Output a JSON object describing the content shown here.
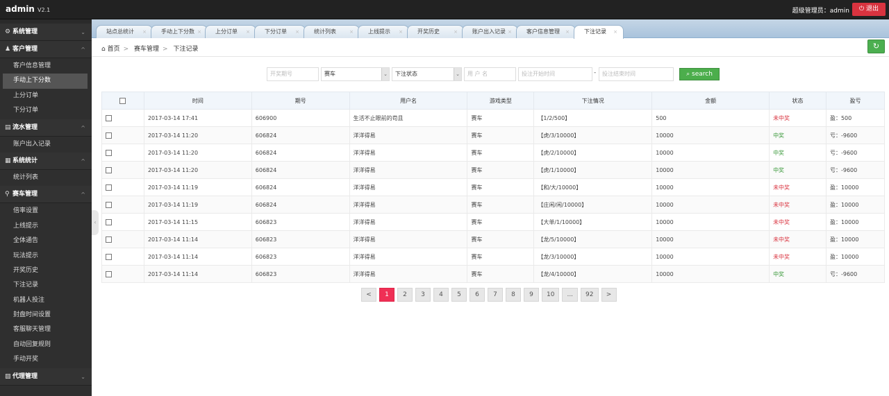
{
  "header": {
    "logo": "admin",
    "version": "V2.1",
    "user": "超级管理员：admin",
    "logout": "退出"
  },
  "sidebar": [
    {
      "label": "系统管理",
      "icon": "gears-icon",
      "expanded": false,
      "items": []
    },
    {
      "label": "客户管理",
      "icon": "user-icon",
      "expanded": true,
      "items": [
        "客户信息管理",
        "手动上下分数",
        "上分订单",
        "下分订单"
      ],
      "active": "手动上下分数"
    },
    {
      "label": "流水管理",
      "icon": "list-icon",
      "expanded": true,
      "items": [
        "账户出入记录"
      ]
    },
    {
      "label": "系统统计",
      "icon": "chart-icon",
      "expanded": true,
      "items": [
        "统计列表"
      ]
    },
    {
      "label": "赛车管理",
      "icon": "wrench-icon",
      "expanded": true,
      "items": [
        "倍率设置",
        "上线提示",
        "全体通告",
        "玩法提示",
        "开奖历史",
        "下注记录",
        "机器人投注",
        "封盘时间设置",
        "客服聊天管理",
        "自动回复规则",
        "手动开奖"
      ]
    },
    {
      "label": "代理管理",
      "icon": "image-icon",
      "expanded": false,
      "items": []
    }
  ],
  "tabs": [
    "站点总统计",
    "手动上下分数",
    "上分订单",
    "下分订单",
    "统计列表",
    "上线提示",
    "开奖历史",
    "账户出入记录",
    "客户信息管理",
    "下注记录"
  ],
  "active_tab": "下注记录",
  "breadcrumb": [
    "首页",
    "赛车管理",
    "下注记录"
  ],
  "filters": {
    "issue_placeholder": "开奖期号",
    "game": "赛车",
    "status": "下注状态",
    "user_placeholder": "用 户 名",
    "start_placeholder": "投注开始时间",
    "end_placeholder": "投注结束时间",
    "search": "search",
    "range_sep": "-"
  },
  "table": {
    "columns": [
      "时间",
      "期号",
      "用户名",
      "游戏类型",
      "下注情况",
      "金额",
      "状态",
      "盈亏"
    ],
    "rows": [
      [
        "2017-03-14 17:41",
        "606900",
        "生活不止眼前的苟且",
        "赛车",
        "【1/2/500】",
        "500",
        "未中奖",
        "盈：500"
      ],
      [
        "2017-03-14 11:20",
        "606824",
        "洋洋得易",
        "赛车",
        "【虎/3/10000】",
        "10000",
        "中奖",
        "亏：-9600"
      ],
      [
        "2017-03-14 11:20",
        "606824",
        "洋洋得易",
        "赛车",
        "【虎/2/10000】",
        "10000",
        "中奖",
        "亏：-9600"
      ],
      [
        "2017-03-14 11:20",
        "606824",
        "洋洋得易",
        "赛车",
        "【虎/1/10000】",
        "10000",
        "中奖",
        "亏：-9600"
      ],
      [
        "2017-03-14 11:19",
        "606824",
        "洋洋得易",
        "赛车",
        "【和/大/10000】",
        "10000",
        "未中奖",
        "盈：10000"
      ],
      [
        "2017-03-14 11:19",
        "606824",
        "洋洋得易",
        "赛车",
        "【庄闲/闲/10000】",
        "10000",
        "未中奖",
        "盈：10000"
      ],
      [
        "2017-03-14 11:15",
        "606823",
        "洋洋得易",
        "赛车",
        "【大单/1/10000】",
        "10000",
        "未中奖",
        "盈：10000"
      ],
      [
        "2017-03-14 11:14",
        "606823",
        "洋洋得易",
        "赛车",
        "【龙/5/10000】",
        "10000",
        "未中奖",
        "盈：10000"
      ],
      [
        "2017-03-14 11:14",
        "606823",
        "洋洋得易",
        "赛车",
        "【龙/3/10000】",
        "10000",
        "未中奖",
        "盈：10000"
      ],
      [
        "2017-03-14 11:14",
        "606823",
        "洋洋得易",
        "赛车",
        "【龙/4/10000】",
        "10000",
        "中奖",
        "亏：-9600"
      ]
    ]
  },
  "pagination": {
    "prev": "<",
    "pages": [
      "1",
      "2",
      "3",
      "4",
      "5",
      "6",
      "7",
      "8",
      "9",
      "10",
      "...",
      "92"
    ],
    "next": ">",
    "current": "1"
  },
  "colors": {
    "win": "#3c9a3c",
    "lose": "#d9333f",
    "active_page": "#ef2f55",
    "search": "#4cae4c",
    "logout": "#d9333f"
  }
}
